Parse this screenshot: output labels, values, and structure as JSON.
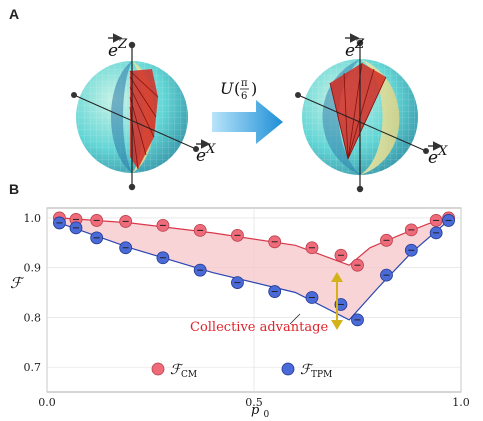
{
  "panel_a": {
    "label": "A",
    "axis_z": "Z",
    "axis_x": "X",
    "axis_symbol": "e",
    "operator": "U",
    "operator_arg_num": "π",
    "operator_arg_den": "6",
    "arrow_color": "#3aa0dc",
    "sphere_color": "#5fd3d8",
    "fan_color": "#d42a22"
  },
  "panel_b": {
    "label": "B",
    "annotation": "Collective advantage",
    "annotation_color": "#e0232b",
    "arrow_color": "#d4b21a",
    "legend": {
      "cm_symbol": "ℱ",
      "cm_sub": "CM",
      "tpm_symbol": "ℱ",
      "tpm_sub": "TPM"
    }
  },
  "chart_data": {
    "type": "line",
    "xlabel": "p0",
    "ylabel": "ℱ",
    "xlim": [
      0.0,
      1.0
    ],
    "ylim": [
      0.65,
      1.02
    ],
    "xticks": [
      "0.0",
      "0.5",
      "1.0"
    ],
    "yticks": [
      "1.0",
      "0.9",
      "0.8",
      "0.7"
    ],
    "xtick_values": [
      0.0,
      0.5,
      1.0
    ],
    "ytick_values": [
      1.0,
      0.9,
      0.8,
      0.7
    ],
    "grid": true,
    "legend_position": "bottom",
    "series": [
      {
        "name": "ℱCM",
        "color": "#ef6b7a",
        "marker_points": {
          "x": [
            0.03,
            0.07,
            0.12,
            0.19,
            0.28,
            0.37,
            0.46,
            0.55,
            0.64,
            0.71,
            0.75,
            0.82,
            0.88,
            0.94,
            0.97
          ],
          "y": [
            1.0,
            0.997,
            0.995,
            0.993,
            0.985,
            0.975,
            0.965,
            0.952,
            0.94,
            0.925,
            0.905,
            0.955,
            0.976,
            0.995,
            1.0
          ]
        },
        "curve": {
          "x": [
            0.03,
            0.2,
            0.4,
            0.6,
            0.73,
            0.78,
            0.85,
            0.92,
            0.97
          ],
          "y": [
            1.0,
            0.99,
            0.97,
            0.945,
            0.905,
            0.94,
            0.965,
            0.988,
            1.0
          ]
        }
      },
      {
        "name": "ℱTPM",
        "color": "#3f5fd0",
        "marker_points": {
          "x": [
            0.03,
            0.07,
            0.12,
            0.19,
            0.28,
            0.37,
            0.46,
            0.55,
            0.64,
            0.71,
            0.75,
            0.82,
            0.88,
            0.94,
            0.97
          ],
          "y": [
            0.99,
            0.98,
            0.96,
            0.94,
            0.92,
            0.895,
            0.87,
            0.852,
            0.84,
            0.826,
            0.795,
            0.885,
            0.935,
            0.97,
            0.995
          ]
        },
        "curve": {
          "x": [
            0.03,
            0.2,
            0.4,
            0.6,
            0.73,
            0.8,
            0.88,
            0.97
          ],
          "y": [
            0.99,
            0.94,
            0.89,
            0.85,
            0.795,
            0.86,
            0.93,
            0.995
          ]
        }
      }
    ]
  }
}
